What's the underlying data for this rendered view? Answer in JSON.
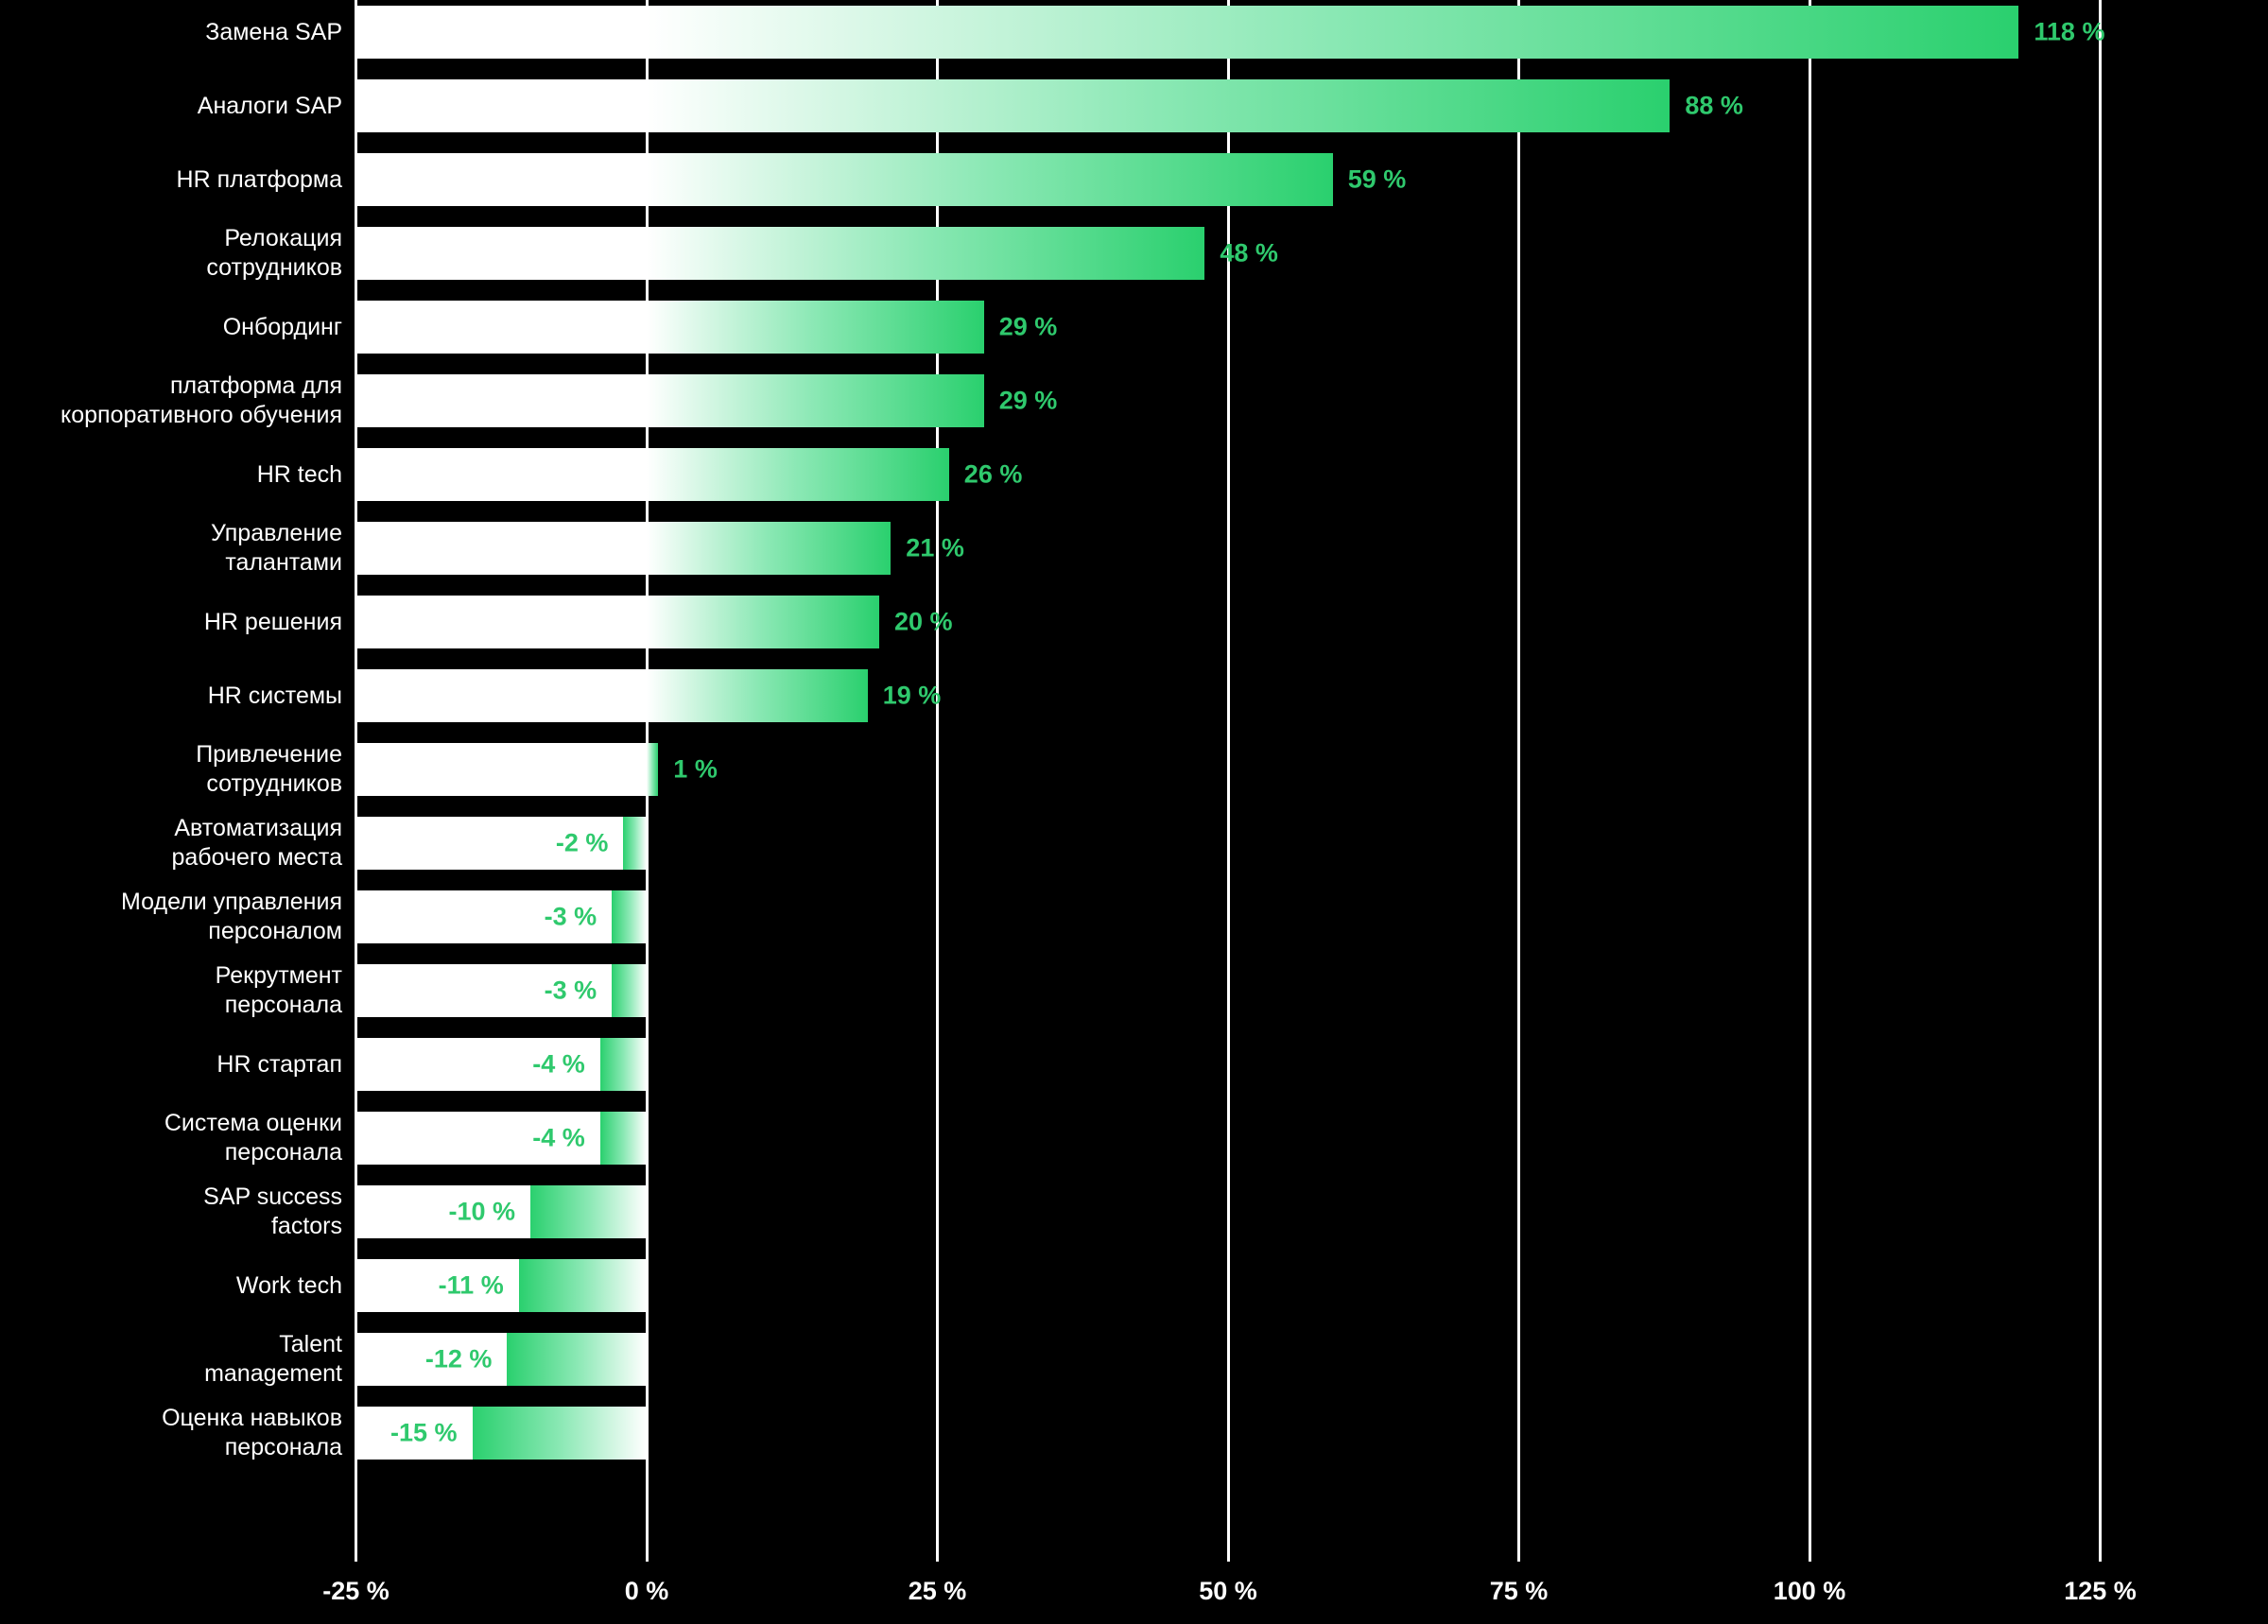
{
  "chart_data": {
    "type": "bar",
    "orientation": "horizontal",
    "title": "",
    "categories": [
      "Замена SAP",
      "Аналоги SAP",
      "HR платформа",
      "Релокация\nсотрудников",
      "Онбординг",
      "платформа для\nкорпоративного обучения",
      "HR tech",
      "Управление\nталантами",
      "HR решения",
      "HR системы",
      "Привлечение\nсотрудников",
      "Автоматизация\nрабочего места",
      "Модели управления\nперсоналом",
      "Рекрутмент\nперсонала",
      "HR стартап",
      "Система оценки\nперсонала",
      "SAP success\nfactors",
      "Work tech",
      "Talent\nmanagement",
      "Оценка навыков\nперсонала"
    ],
    "values": [
      118,
      88,
      59,
      48,
      29,
      29,
      26,
      21,
      20,
      19,
      1,
      -2,
      -3,
      -3,
      -4,
      -4,
      -10,
      -11,
      -12,
      -15
    ],
    "value_labels": [
      "118 %",
      "88 %",
      "59 %",
      "48 %",
      "29 %",
      "29 %",
      "26 %",
      "21 %",
      "20 %",
      "19 %",
      "1 %",
      "-2 %",
      "-3 %",
      "-3 %",
      "-4 %",
      "-4 %",
      "-10 %",
      "-11 %",
      "-12 %",
      "-15 %"
    ],
    "x_ticks": [
      -25,
      0,
      25,
      50,
      75,
      100,
      125
    ],
    "x_tick_labels": [
      "-25 %",
      "0 %",
      "25 %",
      "50 %",
      "75 %",
      "100 %",
      "125 %"
    ],
    "xlim": [
      -25,
      125
    ],
    "grid": true,
    "legend": false,
    "colors": {
      "background": "#000000",
      "bar_gradient_start": "#ffffff",
      "bar_gradient_end": "#2ad06e",
      "value_label": "#2fc96d",
      "category_label": "#ffffff",
      "axis_label": "#ffffff",
      "gridline": "#ffffff",
      "track": "#ffffff"
    }
  }
}
